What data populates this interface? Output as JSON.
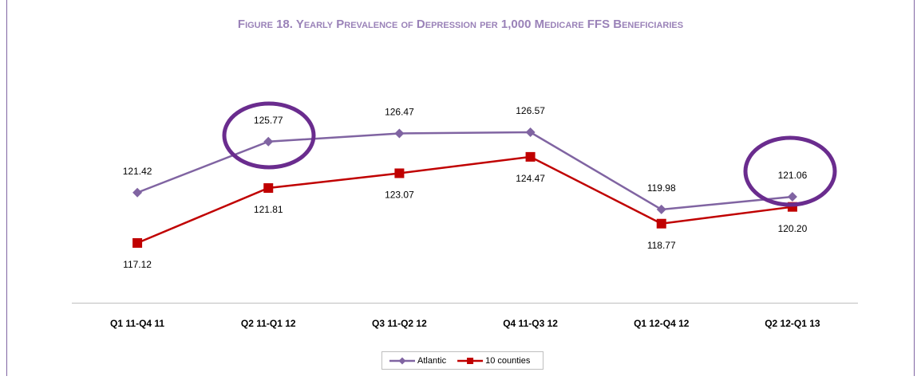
{
  "chart_data": {
    "type": "line",
    "title": "Figure 18. Yearly Prevalence of Depression per 1,000 Medicare FFS Beneficiaries",
    "categories": [
      "Q1 11-Q4 11",
      "Q2 11-Q1 12",
      "Q3 11-Q2 12",
      "Q4 11-Q3 12",
      "Q1 12-Q4 12",
      "Q2 12-Q1 13"
    ],
    "series": [
      {
        "name": "Atlantic",
        "color": "#8064a2",
        "marker": "diamond",
        "values": [
          121.42,
          125.77,
          126.47,
          126.57,
          119.98,
          121.06
        ],
        "value_labels": [
          "121.42",
          "125.77",
          "126.47",
          "126.57",
          "119.98",
          "121.06"
        ]
      },
      {
        "name": "10 counties",
        "color": "#c00000",
        "marker": "square",
        "values": [
          117.12,
          121.81,
          123.07,
          124.47,
          118.77,
          120.2
        ],
        "value_labels": [
          "117.12",
          "121.81",
          "123.07",
          "124.47",
          "118.77",
          "120.20"
        ]
      }
    ],
    "legend": "bottom"
  }
}
